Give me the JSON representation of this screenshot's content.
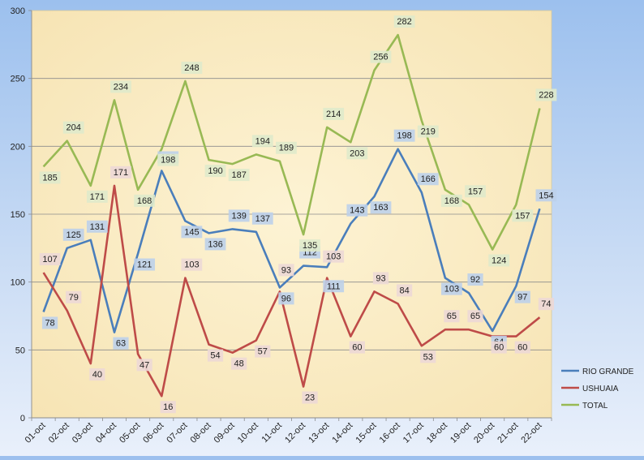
{
  "chart_data": {
    "type": "line",
    "title": "",
    "xlabel": "",
    "ylabel": "",
    "ylim": [
      0,
      300
    ],
    "y_ticks": [
      0,
      50,
      100,
      150,
      200,
      250,
      300
    ],
    "grid": true,
    "legend_position": "right",
    "categories": [
      "01-oct",
      "02-oct",
      "03-oct",
      "04-oct",
      "05-oct",
      "06-oct",
      "07-oct",
      "08-oct",
      "09-oct",
      "10-oct",
      "11-oct",
      "12-oct",
      "13-oct",
      "14-oct",
      "15-oct",
      "16-oct",
      "17-oct",
      "18-oct",
      "19-oct",
      "20-oct",
      "21-oct",
      "22-oct"
    ],
    "series": [
      {
        "name": "RIO GRANDE",
        "color": "#4a7ebb",
        "label_bg": "#bcd0ea",
        "values": [
          78,
          125,
          131,
          63,
          121,
          182,
          145,
          136,
          139,
          137,
          96,
          112,
          111,
          143,
          163,
          198,
          166,
          103,
          92,
          64,
          97,
          154
        ]
      },
      {
        "name": "USHUAIA",
        "color": "#be4b48",
        "label_bg": "#ecd8d6",
        "values": [
          107,
          79,
          40,
          171,
          47,
          16,
          103,
          54,
          48,
          57,
          93,
          23,
          103,
          60,
          93,
          84,
          53,
          65,
          65,
          60,
          60,
          74
        ]
      },
      {
        "name": "TOTAL",
        "color": "#98b954",
        "label_bg": "#dfeacb",
        "values": [
          185,
          204,
          171,
          234,
          168,
          198,
          248,
          190,
          187,
          194,
          189,
          135,
          214,
          203,
          256,
          282,
          219,
          168,
          157,
          124,
          157,
          228
        ]
      }
    ]
  }
}
